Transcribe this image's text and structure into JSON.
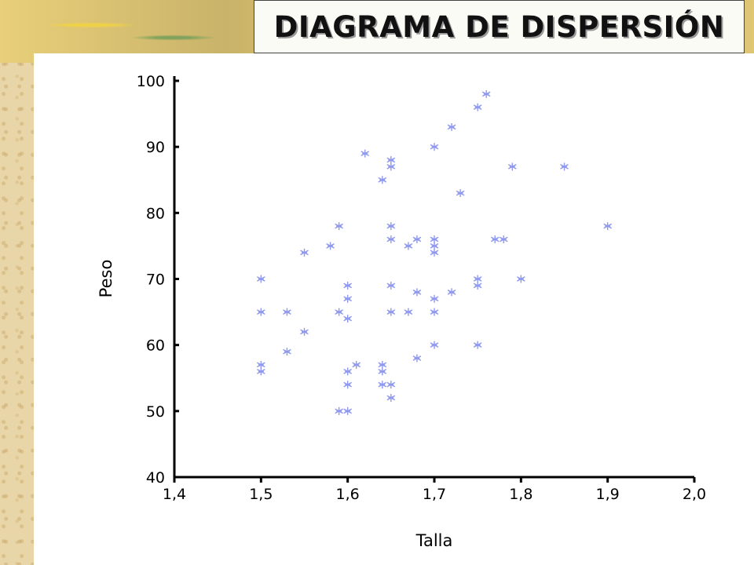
{
  "slide": {
    "title": "DIAGRAMA DE DISPERSIÓN"
  },
  "colors": {
    "marker": "#8e98ee",
    "axis": "#000000",
    "title_box": "#fbfbf6"
  },
  "chart_data": {
    "type": "scatter",
    "title": "",
    "xlabel": "Talla",
    "ylabel": "Peso",
    "xlim": [
      1.4,
      2.0
    ],
    "ylim": [
      40,
      100
    ],
    "x_ticks": [
      "1,4",
      "1,5",
      "1,6",
      "1,7",
      "1,8",
      "1,9",
      "2,0"
    ],
    "y_ticks": [
      "40",
      "50",
      "60",
      "70",
      "80",
      "90",
      "100"
    ],
    "grid": false,
    "legend": "none",
    "marker": "asterisk",
    "points": [
      [
        1.5,
        70
      ],
      [
        1.5,
        65
      ],
      [
        1.5,
        57
      ],
      [
        1.5,
        56
      ],
      [
        1.53,
        65
      ],
      [
        1.53,
        59
      ],
      [
        1.55,
        74
      ],
      [
        1.55,
        62
      ],
      [
        1.58,
        75
      ],
      [
        1.59,
        78
      ],
      [
        1.59,
        65
      ],
      [
        1.59,
        50
      ],
      [
        1.6,
        50
      ],
      [
        1.6,
        69
      ],
      [
        1.6,
        67
      ],
      [
        1.6,
        64
      ],
      [
        1.6,
        56
      ],
      [
        1.6,
        54
      ],
      [
        1.61,
        57
      ],
      [
        1.62,
        89
      ],
      [
        1.64,
        85
      ],
      [
        1.64,
        57
      ],
      [
        1.64,
        56
      ],
      [
        1.64,
        54
      ],
      [
        1.65,
        54
      ],
      [
        1.65,
        88
      ],
      [
        1.65,
        87
      ],
      [
        1.65,
        78
      ],
      [
        1.65,
        76
      ],
      [
        1.65,
        69
      ],
      [
        1.65,
        65
      ],
      [
        1.65,
        52
      ],
      [
        1.67,
        75
      ],
      [
        1.67,
        65
      ],
      [
        1.68,
        76
      ],
      [
        1.68,
        68
      ],
      [
        1.68,
        58
      ],
      [
        1.7,
        90
      ],
      [
        1.7,
        76
      ],
      [
        1.7,
        75
      ],
      [
        1.7,
        74
      ],
      [
        1.7,
        67
      ],
      [
        1.7,
        65
      ],
      [
        1.7,
        60
      ],
      [
        1.72,
        93
      ],
      [
        1.72,
        68
      ],
      [
        1.73,
        83
      ],
      [
        1.75,
        96
      ],
      [
        1.75,
        70
      ],
      [
        1.75,
        69
      ],
      [
        1.75,
        60
      ],
      [
        1.76,
        98
      ],
      [
        1.77,
        76
      ],
      [
        1.78,
        76
      ],
      [
        1.79,
        87
      ],
      [
        1.8,
        70
      ],
      [
        1.85,
        87
      ],
      [
        1.9,
        78
      ]
    ]
  }
}
